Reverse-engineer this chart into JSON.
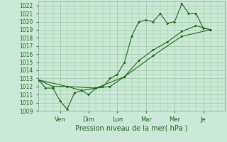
{
  "background_color": "#cce8d8",
  "grid_color": "#99cc99",
  "line_color": "#1a6b1a",
  "marker_color": "#1a6b1a",
  "xlabel": "Pression niveau de la mer( hPa )",
  "ylim": [
    1009,
    1022.5
  ],
  "yticks": [
    1009,
    1010,
    1011,
    1012,
    1013,
    1014,
    1015,
    1016,
    1017,
    1018,
    1019,
    1020,
    1021,
    1022
  ],
  "x_day_labels": [
    "Ven",
    "Dim",
    "Lun",
    "Mar",
    "Mer",
    "Je"
  ],
  "x_day_positions": [
    1.5,
    3.5,
    5.5,
    7.5,
    9.5,
    11.5
  ],
  "xlim": [
    0,
    13
  ],
  "series1_x": [
    0,
    0.5,
    1.0,
    1.5,
    2.0,
    2.5,
    3.0,
    3.5,
    4.0,
    4.5,
    5.0,
    5.5,
    6.0,
    6.5,
    7.0,
    7.5,
    8.0,
    8.5,
    9.0,
    9.5,
    10.0,
    10.5,
    11.0,
    11.5,
    12.0
  ],
  "series1_y": [
    1012.8,
    1011.8,
    1011.8,
    1010.2,
    1009.2,
    1011.2,
    1011.5,
    1011.0,
    1011.8,
    1012.0,
    1013.0,
    1013.5,
    1015.0,
    1018.2,
    1020.0,
    1020.2,
    1020.0,
    1021.0,
    1019.8,
    1020.0,
    1022.2,
    1021.0,
    1021.0,
    1019.2,
    1019.0
  ],
  "series2_x": [
    0,
    1,
    2,
    3,
    4,
    5,
    6,
    7,
    8,
    9,
    10,
    11,
    12
  ],
  "series2_y": [
    1012.8,
    1012.0,
    1012.0,
    1011.5,
    1011.8,
    1012.0,
    1013.2,
    1015.2,
    1016.5,
    1017.5,
    1018.8,
    1019.5,
    1019.0
  ],
  "series3_x": [
    0,
    2,
    4,
    6,
    8,
    10,
    12
  ],
  "series3_y": [
    1012.8,
    1012.0,
    1011.8,
    1013.2,
    1015.8,
    1018.2,
    1019.0
  ],
  "xlabel_fontsize": 7,
  "tick_fontsize": 5.5,
  "xtick_fontsize": 6
}
